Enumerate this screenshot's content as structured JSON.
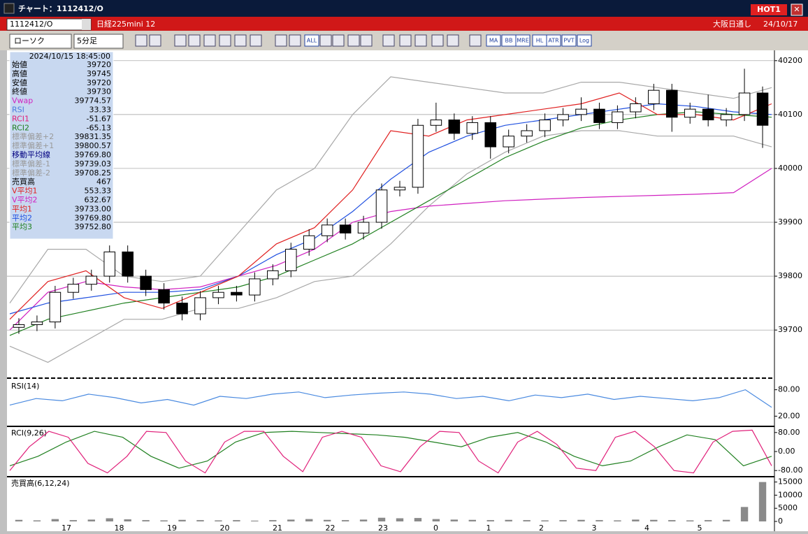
{
  "window": {
    "title": "チャート：1112412/O",
    "hot_button": "HOT1"
  },
  "header": {
    "symbol": "1112412/O",
    "instrument": "日経225mini 12",
    "session": "大阪日通し",
    "date": "24/10/17"
  },
  "toolbar": {
    "chart_style": "ローソク",
    "interval": "5分足",
    "icon_labels": [
      "ALL",
      "MA",
      "BB",
      "MRE",
      "HL",
      "ATR",
      "PVT",
      "Log"
    ]
  },
  "info_panel": {
    "datetime": "2024/10/15 18:45:00",
    "rows": [
      {
        "label": "始値",
        "value": "39720",
        "color": "#000000"
      },
      {
        "label": "高値",
        "value": "39745",
        "color": "#000000"
      },
      {
        "label": "安値",
        "value": "39720",
        "color": "#000000"
      },
      {
        "label": "終値",
        "value": "39730",
        "color": "#000000"
      },
      {
        "label": "Vwap",
        "value": "39774.57",
        "color": "#d020c0"
      },
      {
        "label": "RSI",
        "value": "33.33",
        "color": "#4a7ae0"
      },
      {
        "label": "RCI1",
        "value": "-51.67",
        "color": "#e0207a"
      },
      {
        "label": "RCI2",
        "value": "-65.13",
        "color": "#208020"
      },
      {
        "label": "標準偏差+2",
        "value": "39831.35",
        "color": "#9a9a9a"
      },
      {
        "label": "標準偏差+1",
        "value": "39800.57",
        "color": "#9a9a9a"
      },
      {
        "label": "移動平均線",
        "value": "39769.80",
        "color": "#000080"
      },
      {
        "label": "標準偏差-1",
        "value": "39739.03",
        "color": "#9a9a9a"
      },
      {
        "label": "標準偏差-2",
        "value": "39708.25",
        "color": "#9a9a9a"
      },
      {
        "label": "売買高",
        "value": "467",
        "color": "#000000"
      },
      {
        "label": "V平均1",
        "value": "553.33",
        "color": "#e02020"
      },
      {
        "label": "V平均2",
        "value": "632.67",
        "color": "#d020c0"
      },
      {
        "label": "平均1",
        "value": "39733.00",
        "color": "#e02020"
      },
      {
        "label": "平均2",
        "value": "39769.80",
        "color": "#2050e0"
      },
      {
        "label": "平均3",
        "value": "39752.80",
        "color": "#208020"
      }
    ]
  },
  "time_axis": {
    "labels": [
      "17",
      "18",
      "19",
      "20",
      "21",
      "22",
      "23",
      "0",
      "1",
      "2",
      "3",
      "4",
      "5"
    ]
  },
  "chart_data": [
    {
      "type": "candlestick",
      "ylim": [
        39612,
        40214
      ],
      "yticks": [
        39700,
        39800,
        39900,
        40000,
        40100,
        40200
      ],
      "grid": true,
      "open": [
        39705,
        39710,
        39715,
        39770,
        39785,
        39800,
        39845,
        39800,
        39775,
        39750,
        39730,
        39760,
        39770,
        39765,
        39795,
        39810,
        39850,
        39875,
        39895,
        39880,
        39900,
        39960,
        39965,
        40080,
        40090,
        40065,
        40085,
        40040,
        40060,
        40070,
        40090,
        40100,
        40110,
        40085,
        40105,
        40120,
        40145,
        40095,
        40110,
        40090,
        40100,
        40140
      ],
      "high": [
        39722,
        39727,
        39782,
        39797,
        39812,
        39857,
        39857,
        39812,
        39787,
        39762,
        39772,
        39782,
        39782,
        39807,
        39822,
        39862,
        39887,
        39907,
        39907,
        39912,
        39972,
        39977,
        40092,
        40122,
        40102,
        40097,
        40097,
        40072,
        40082,
        40102,
        40112,
        40132,
        40122,
        40117,
        40132,
        40157,
        40157,
        40122,
        40137,
        40112,
        40185,
        40152
      ],
      "low": [
        39693,
        39698,
        39703,
        39758,
        39773,
        39788,
        39788,
        39763,
        39738,
        39718,
        39718,
        39748,
        39753,
        39753,
        39783,
        39798,
        39838,
        39863,
        39868,
        39868,
        39888,
        39948,
        39953,
        40068,
        40053,
        40053,
        40018,
        40028,
        40048,
        40058,
        40078,
        40088,
        40073,
        40073,
        40093,
        40108,
        40068,
        40083,
        40078,
        40078,
        40088,
        40038
      ],
      "close": [
        39710,
        39715,
        39770,
        39785,
        39800,
        39845,
        39800,
        39775,
        39750,
        39730,
        39760,
        39770,
        39765,
        39795,
        39810,
        39850,
        39875,
        39895,
        39880,
        39900,
        39960,
        39965,
        40080,
        40090,
        40065,
        40085,
        40040,
        40060,
        40070,
        40090,
        40100,
        40110,
        40085,
        40105,
        40120,
        40145,
        40095,
        40110,
        40090,
        40100,
        40140,
        40080
      ],
      "series": [
        {
          "color": "#a8a8a8",
          "values": [
            39750,
            39850,
            39850,
            39800,
            39790,
            39800,
            39880,
            39960,
            40000,
            40100,
            40170,
            40160,
            40150,
            40140,
            40140,
            40160,
            40160,
            40150,
            40140,
            40130,
            40150
          ]
        },
        {
          "color": "#a8a8a8",
          "values": [
            39670,
            39640,
            39680,
            39720,
            39720,
            39740,
            39740,
            39760,
            39790,
            39800,
            39860,
            39930,
            39990,
            40030,
            40060,
            40070,
            40070,
            40060,
            40060,
            40060,
            40040
          ]
        },
        {
          "color": "#d020c0",
          "values": [
            39700,
            39770,
            39790,
            39780,
            39775,
            39780,
            39800,
            39820,
            39850,
            39900,
            39920,
            39930,
            39935,
            39940,
            39943,
            39946,
            39948,
            39950,
            39952,
            39955,
            40000
          ]
        },
        {
          "color": "#208020",
          "values": [
            39690,
            39720,
            39735,
            39750,
            39760,
            39770,
            39780,
            39800,
            39830,
            39860,
            39900,
            39940,
            39980,
            40020,
            40050,
            40075,
            40090,
            40100,
            40105,
            40100,
            40095
          ]
        },
        {
          "color": "#2050e0",
          "values": [
            39730,
            39750,
            39760,
            39770,
            39770,
            39775,
            39800,
            39840,
            39870,
            39920,
            39980,
            40030,
            40060,
            40080,
            40090,
            40100,
            40110,
            40120,
            40115,
            40105,
            40100
          ]
        },
        {
          "color": "#e02020",
          "values": [
            39720,
            39790,
            39810,
            39760,
            39740,
            39770,
            39800,
            39860,
            39890,
            39960,
            40070,
            40060,
            40090,
            40100,
            40110,
            40120,
            40140,
            40100,
            40100,
            40090,
            40120
          ]
        }
      ]
    },
    {
      "type": "line",
      "title": "RSI(14)",
      "ylim": [
        0,
        100
      ],
      "yticks": [
        {
          "value": 80,
          "label": "80.00"
        },
        {
          "value": 20,
          "label": "20.00"
        }
      ],
      "series": [
        {
          "color": "#4a8ae0",
          "values": [
            45,
            60,
            55,
            70,
            62,
            50,
            58,
            45,
            65,
            60,
            70,
            75,
            62,
            68,
            72,
            75,
            70,
            60,
            65,
            55,
            68,
            62,
            70,
            58,
            65,
            60,
            55,
            62,
            80,
            40
          ]
        }
      ]
    },
    {
      "type": "line",
      "title": "RCI(9,26)",
      "ylim": [
        -100,
        100
      ],
      "yticks": [
        {
          "value": 80,
          "label": "80.00"
        },
        {
          "value": 0,
          "label": "0.00"
        },
        {
          "value": -80,
          "label": "-80.00"
        }
      ],
      "series": [
        {
          "color": "#208020",
          "values": [
            -60,
            -20,
            40,
            85,
            60,
            -20,
            -70,
            -40,
            40,
            80,
            85,
            80,
            75,
            70,
            60,
            40,
            20,
            60,
            80,
            40,
            -20,
            -60,
            -40,
            20,
            70,
            50,
            -60,
            -20
          ]
        },
        {
          "color": "#e0207a",
          "values": [
            -80,
            20,
            85,
            60,
            -50,
            -90,
            -20,
            85,
            80,
            -40,
            -90,
            40,
            85,
            85,
            -20,
            -85,
            60,
            85,
            60,
            -60,
            -85,
            20,
            85,
            80,
            -40,
            -90,
            40,
            85,
            30,
            -70,
            -80,
            60,
            85,
            20,
            -80,
            -90,
            40,
            85,
            90,
            -60
          ]
        }
      ]
    },
    {
      "type": "bar",
      "title": "売買高(6,12,24)",
      "ylim": [
        0,
        16500
      ],
      "yticks": [
        0,
        5000,
        10000,
        15000
      ],
      "color": "#8a8a8a",
      "values": [
        600,
        400,
        900,
        500,
        700,
        1200,
        800,
        500,
        400,
        600,
        500,
        400,
        500,
        300,
        500,
        700,
        900,
        600,
        500,
        700,
        1400,
        1200,
        1300,
        900,
        700,
        600,
        500,
        600,
        500,
        400,
        500,
        600,
        500,
        400,
        700,
        600,
        500,
        400,
        500,
        600,
        5500,
        15000
      ]
    }
  ]
}
